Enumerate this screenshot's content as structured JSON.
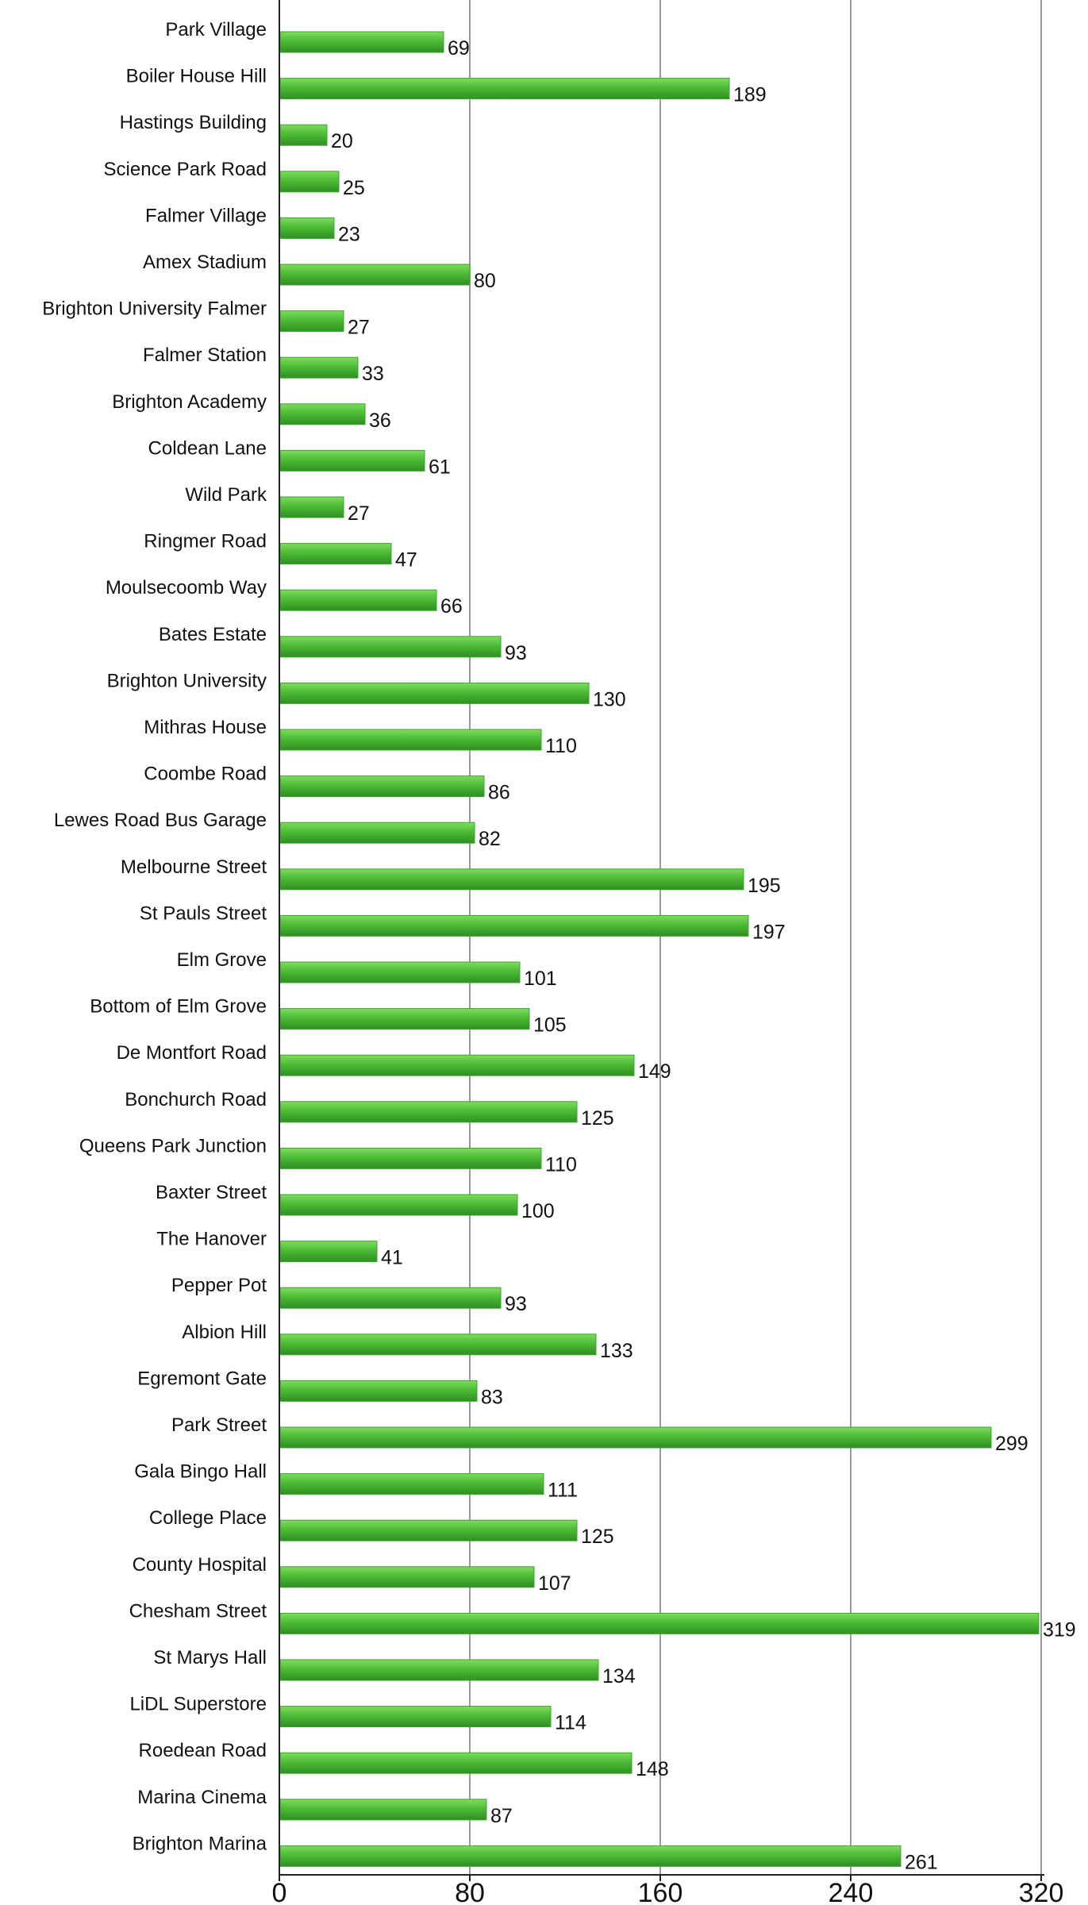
{
  "chart_data": {
    "type": "bar",
    "orientation": "horizontal",
    "title": "",
    "xlabel": "",
    "ylabel": "",
    "xlim": [
      0,
      320
    ],
    "ticks": [
      "0",
      "80",
      "160",
      "240",
      "320"
    ],
    "grid": true,
    "legend": "none",
    "bar_color": "#3aa52c",
    "bar_highlight": "#7fdc5c",
    "categories": [
      "Park Village",
      "Boiler House Hill",
      "Hastings Building",
      "Science Park Road",
      "Falmer Village",
      "Amex Stadium",
      "Brighton University Falmer",
      "Falmer Station",
      "Brighton Academy",
      "Coldean Lane",
      "Wild Park",
      "Ringmer Road",
      "Moulsecoomb Way",
      "Bates Estate",
      "Brighton University",
      "Mithras House",
      "Coombe Road",
      "Lewes Road Bus Garage",
      "Melbourne Street",
      "St Pauls Street",
      "Elm Grove",
      "Bottom of Elm Grove",
      "De Montfort Road",
      "Bonchurch Road",
      "Queens Park Junction",
      "Baxter Street",
      "The Hanover",
      "Pepper Pot",
      "Albion Hill",
      "Egremont Gate",
      "Park Street",
      "Gala Bingo Hall",
      "College Place",
      "County Hospital",
      "Chesham Street",
      "St Marys Hall",
      "LiDL Superstore",
      "Roedean Road",
      "Marina Cinema",
      "Brighton Marina"
    ],
    "values": [
      69,
      189,
      20,
      25,
      23,
      80,
      27,
      33,
      36,
      61,
      27,
      47,
      66,
      93,
      130,
      110,
      86,
      82,
      195,
      197,
      101,
      105,
      149,
      125,
      110,
      100,
      41,
      93,
      133,
      83,
      299,
      111,
      125,
      107,
      319,
      134,
      114,
      148,
      87,
      261
    ]
  }
}
